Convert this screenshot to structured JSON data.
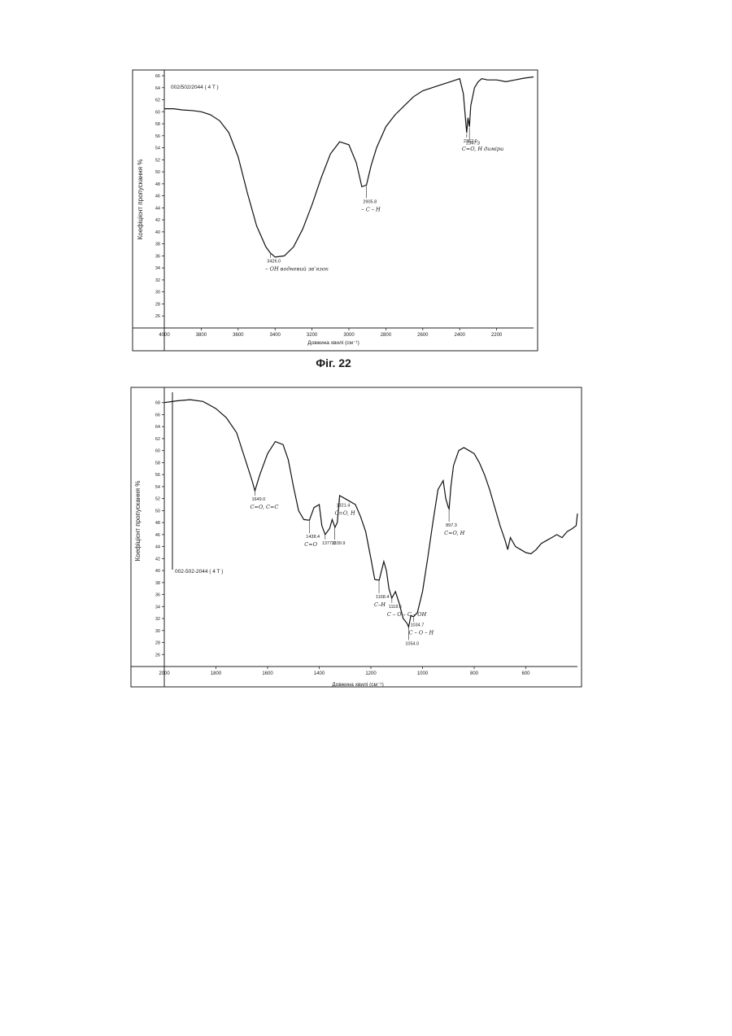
{
  "figure_caption": "Фіг. 22",
  "chart_data": [
    {
      "type": "line",
      "title": "",
      "xlabel": "Довжина хвилі (см⁻¹)",
      "ylabel": "Коефіцієнт пропускання %",
      "sample_id": "002/502/2044 ( 4 T )",
      "xlim": [
        4000,
        2000
      ],
      "ylim": [
        24,
        66
      ],
      "x_ticks": [
        4000,
        3800,
        3600,
        3400,
        3200,
        3000,
        2800,
        2600,
        2400,
        2200
      ],
      "y_ticks": [
        26,
        28,
        30,
        32,
        34,
        36,
        38,
        40,
        42,
        44,
        46,
        48,
        50,
        52,
        54,
        56,
        58,
        60,
        62,
        64,
        66
      ],
      "grid": false,
      "series": [
        {
          "x": [
            4000,
            3950,
            3900,
            3850,
            3800,
            3750,
            3700,
            3650,
            3600,
            3550,
            3500,
            3450,
            3426,
            3400,
            3350,
            3300,
            3250,
            3200,
            3150,
            3100,
            3050,
            3000,
            2960,
            2930,
            2905,
            2880,
            2850,
            2800,
            2750,
            2700,
            2650,
            2600,
            2550,
            2500,
            2450,
            2400,
            2380,
            2362,
            2355,
            2347,
            2340,
            2320,
            2300,
            2280,
            2250,
            2200,
            2150,
            2100,
            2050,
            2000
          ],
          "y": [
            60.5,
            60.5,
            60.3,
            60.2,
            60.0,
            59.5,
            58.5,
            56.5,
            52.5,
            46.5,
            41.0,
            37.5,
            36.5,
            35.8,
            36.0,
            37.5,
            40.5,
            44.5,
            49.0,
            53.0,
            55.0,
            54.5,
            51.5,
            47.5,
            47.8,
            51.0,
            54.0,
            57.5,
            59.5,
            61.0,
            62.5,
            63.5,
            64.0,
            64.5,
            65.0,
            65.5,
            63.0,
            56.5,
            59.0,
            57.5,
            61.0,
            64.0,
            65.0,
            65.5,
            65.3,
            65.3,
            65.0,
            65.3,
            65.6,
            65.8
          ]
        }
      ],
      "peaks": [
        {
          "x": 3426.0,
          "label": "3426.0",
          "note": "– OH водневий зв'язок"
        },
        {
          "x": 2905.8,
          "label": "2905.8",
          "note": "– C – H"
        },
        {
          "x": 2362.0,
          "label": "2362.0",
          "note": "C=O, H диміри"
        },
        {
          "x": 2347.3,
          "label": "2347.3",
          "note": ""
        }
      ]
    },
    {
      "type": "line",
      "title": "",
      "xlabel": "Довжина хвилі (см⁻¹)",
      "ylabel": "Коефіцієнт пропускання %",
      "sample_id": "002-502-2044 ( 4 T )",
      "xlim": [
        2000,
        400
      ],
      "ylim": [
        24,
        70
      ],
      "x_ticks": [
        2000,
        1800,
        1600,
        1400,
        1200,
        1000,
        800,
        600
      ],
      "y_ticks": [
        26,
        28,
        30,
        32,
        34,
        36,
        38,
        40,
        42,
        44,
        46,
        48,
        50,
        52,
        54,
        56,
        58,
        60,
        62,
        64,
        66,
        68
      ],
      "grid": false,
      "series": [
        {
          "x": [
            2000,
            1950,
            1900,
            1850,
            1800,
            1760,
            1720,
            1690,
            1660,
            1649,
            1630,
            1600,
            1570,
            1540,
            1520,
            1500,
            1480,
            1460,
            1438,
            1420,
            1400,
            1390,
            1377,
            1360,
            1350,
            1339,
            1330,
            1321,
            1300,
            1280,
            1260,
            1240,
            1220,
            1200,
            1185,
            1168,
            1150,
            1140,
            1130,
            1119,
            1105,
            1090,
            1075,
            1060,
            1054,
            1045,
            1035,
            1020,
            1000,
            980,
            960,
            940,
            920,
            910,
            900,
            897,
            890,
            880,
            860,
            840,
            820,
            800,
            780,
            760,
            740,
            720,
            700,
            680,
            670,
            660,
            640,
            620,
            600,
            580,
            560,
            540,
            520,
            500,
            480,
            460,
            440,
            420,
            405,
            400
          ],
          "y": [
            68.0,
            68.3,
            68.5,
            68.2,
            67.0,
            65.5,
            63.0,
            59.0,
            55.0,
            53.3,
            56.0,
            59.5,
            61.5,
            61.0,
            58.5,
            54.0,
            50.0,
            48.5,
            48.4,
            50.5,
            51.0,
            47.5,
            46.0,
            47.0,
            48.5,
            47.2,
            48.0,
            52.5,
            52.0,
            51.5,
            51.0,
            49.0,
            46.5,
            42.0,
            38.5,
            38.4,
            41.5,
            40.0,
            37.0,
            35.4,
            36.5,
            34.5,
            32.0,
            31.2,
            30.6,
            32.5,
            32.3,
            33.0,
            36.5,
            42.0,
            48.0,
            53.5,
            55.0,
            52.0,
            50.5,
            50.3,
            54.0,
            57.5,
            60.0,
            60.5,
            60.0,
            59.5,
            58.0,
            56.0,
            53.5,
            50.5,
            47.5,
            45.0,
            43.5,
            45.5,
            44.0,
            43.5,
            43.0,
            42.8,
            43.5,
            44.5,
            45.0,
            45.5,
            46.0,
            45.5,
            46.5,
            47.0,
            47.5,
            49.5
          ]
        }
      ],
      "peaks": [
        {
          "x": 1649.0,
          "label": "1649.0",
          "note": "C=O, C=C"
        },
        {
          "x": 1438.4,
          "label": "1438.4",
          "note": "C=O"
        },
        {
          "x": 1377.0,
          "label": "1377.0",
          "note": ""
        },
        {
          "x": 1339.9,
          "label": "1339.9",
          "note": ""
        },
        {
          "x": 1321.4,
          "label": "1321.4",
          "note": "C=O, H"
        },
        {
          "x": 1168.4,
          "label": "1168.4",
          "note": "C–H"
        },
        {
          "x": 1118.6,
          "label": "1118.6",
          "note": "C – O – C – OH"
        },
        {
          "x": 1054.0,
          "label": "1054.0",
          "note": ""
        },
        {
          "x": 1034.7,
          "label": "1034.7",
          "note": "C – O – H"
        },
        {
          "x": 897.3,
          "label": "897.3",
          "note": "C=O, H"
        }
      ]
    }
  ]
}
